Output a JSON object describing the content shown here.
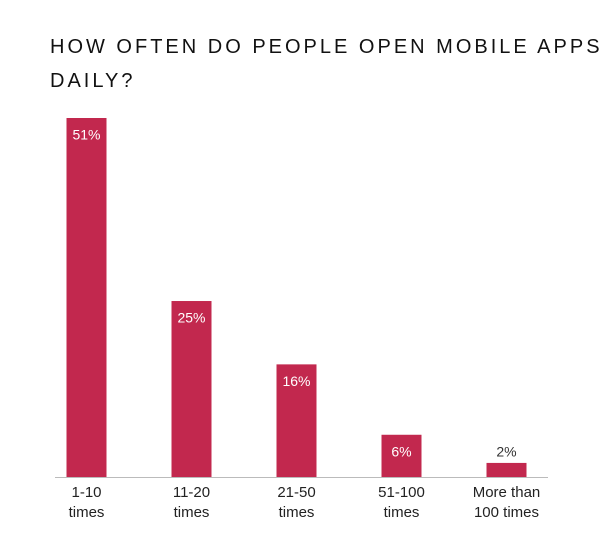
{
  "chart_data": {
    "type": "bar",
    "title": "HOW OFTEN DO PEOPLE OPEN MOBILE APPS DAILY?",
    "categories": [
      "1-10\ntimes",
      "11-20\ntimes",
      "21-50\ntimes",
      "51-100\ntimes",
      "More than\n100 times"
    ],
    "values": [
      51,
      25,
      16,
      6,
      2
    ],
    "value_labels": [
      "51%",
      "25%",
      "16%",
      "6%",
      "2%"
    ],
    "color": "#c2284e"
  }
}
